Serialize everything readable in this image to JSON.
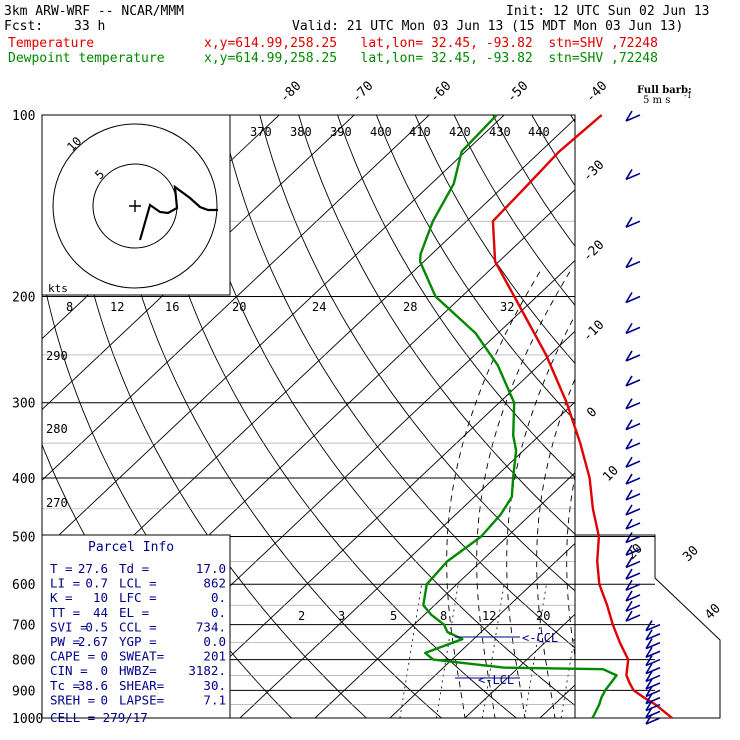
{
  "header": {
    "model": "3km ARW-WRF -- NCAR/MMM",
    "init": "Init: 12 UTC Sun 02 Jun 13",
    "fcst_label": "Fcst:",
    "fcst_value": "33 h",
    "valid": "Valid: 21 UTC Mon 03 Jun 13 (15 MDT Mon 03 Jun 13)",
    "temp_label": "Temperature",
    "temp_loc": "x,y=614.99,258.25   lat,lon= 32.45, -93.82  stn=SHV ,72248",
    "dew_label": "Dewpoint temperature",
    "dew_loc": "x,y=614.99,258.25   lat,lon= 32.45, -93.82  stn=SHV ,72248"
  },
  "barb_legend": {
    "title": "Full barb:",
    "unit": "5 m s",
    "exp": "-1"
  },
  "hodograph": {
    "units": "kts",
    "ring_labels": [
      "5",
      "10"
    ]
  },
  "parcel": {
    "title": "Parcel Info",
    "rows": [
      [
        "T  =",
        "27.6",
        "Td =",
        "17.0"
      ],
      [
        "LI =",
        "0.7",
        "LCL =",
        "862"
      ],
      [
        "K  =",
        "10",
        "LFC =",
        "0."
      ],
      [
        "TT =",
        "44",
        "EL  =",
        "0."
      ],
      [
        "SVI =",
        "0.5",
        "CCL =",
        "734."
      ],
      [
        "PW =",
        "2.67",
        "YGP =",
        "0.0"
      ],
      [
        "CAPE =",
        "0",
        "SWEAT=",
        "201"
      ],
      [
        "CIN =",
        "0",
        "HWBZ=",
        "3182."
      ],
      [
        "Tc =",
        "38.6",
        "SHEAR=",
        "30."
      ],
      [
        "SREH =",
        "0",
        "LAPSE=",
        "7.1"
      ]
    ],
    "cell": "CELL = 279/17"
  },
  "lcl_labels": [
    "<-CCL",
    "<-LCL"
  ],
  "chart_data": {
    "type": "line",
    "title": "",
    "ylabel": "",
    "y_scale": "log-pressure",
    "y_ticks_hpa": [
      100,
      200,
      300,
      400,
      500,
      600,
      700,
      800,
      900,
      1000
    ],
    "isotherm_labels_deg_c": [
      -80,
      -70,
      -60,
      -50,
      -40,
      -30,
      -20,
      -10,
      0,
      10,
      20,
      30,
      40
    ],
    "theta_labels_top_k": [
      370,
      380,
      390,
      400,
      410,
      420,
      430,
      440
    ],
    "theta_labels_left_k": [
      290,
      280,
      270
    ],
    "mixing_ratio_labels_top_gkg": [
      8,
      12,
      16,
      20,
      24,
      28,
      32
    ],
    "mixing_ratio_labels_bottom_gkg": [
      2,
      3,
      5,
      8,
      12,
      20
    ],
    "series": [
      {
        "name": "Temperature",
        "color": "#e00000",
        "pressure_hpa": [
          1000,
          950,
          925,
          900,
          875,
          850,
          800,
          750,
          700,
          650,
          600,
          550,
          500,
          450,
          400,
          350,
          300,
          250,
          200,
          175,
          150,
          130,
          115,
          100
        ],
        "temp_c": [
          27.6,
          23.5,
          21.0,
          18.6,
          17.0,
          15.5,
          13.5,
          10.0,
          6.5,
          3.0,
          -1.0,
          -4.5,
          -7.8,
          -12.5,
          -17.3,
          -23.5,
          -31.0,
          -40.5,
          -53.0,
          -60.5,
          -66.5,
          -67.0,
          -67.5,
          -67.0
        ]
      },
      {
        "name": "Dewpoint temperature",
        "color": "#008800",
        "pressure_hpa": [
          1000,
          950,
          925,
          900,
          850,
          830,
          825,
          800,
          780,
          740,
          720,
          700,
          675,
          650,
          600,
          550,
          500,
          460,
          430,
          400,
          360,
          340,
          300,
          260,
          230,
          200,
          175,
          170,
          150,
          130,
          115,
          100
        ],
        "temp_c": [
          17.0,
          16.0,
          15.3,
          14.8,
          14.2,
          11.5,
          -2.0,
          -12.5,
          -14.5,
          -11.5,
          -14.5,
          -16.0,
          -19.0,
          -21.5,
          -24.0,
          -24.5,
          -23.5,
          -24.0,
          -25.0,
          -27.5,
          -31.0,
          -33.5,
          -38.0,
          -45.5,
          -53.0,
          -63.5,
          -70.5,
          -71.5,
          -74.5,
          -77.0,
          -80.5,
          -81.0
        ]
      }
    ],
    "wind_barbs_note": "wind barbs along right edge, 100-1000 hPa"
  }
}
